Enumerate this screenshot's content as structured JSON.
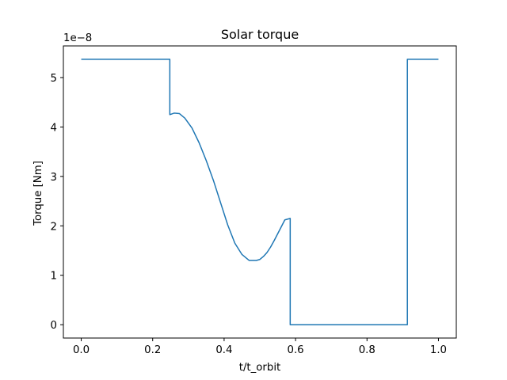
{
  "chart_data": {
    "type": "line",
    "title": "Solar torque",
    "xlabel": "t/t_orbit",
    "ylabel": "Torque [Nm]",
    "offset_text": "1e−8",
    "scale": 1e-08,
    "xlim": [
      -0.05,
      1.05
    ],
    "ylim": [
      -0.27,
      5.64
    ],
    "x_ticks": [
      0.0,
      0.2,
      0.4,
      0.6,
      0.8,
      1.0
    ],
    "x_tick_labels": [
      "0.0",
      "0.2",
      "0.4",
      "0.6",
      "0.8",
      "1.0"
    ],
    "y_ticks": [
      0,
      1,
      2,
      3,
      4,
      5
    ],
    "y_tick_labels": [
      "0",
      "1",
      "2",
      "3",
      "4",
      "5"
    ],
    "grid": false,
    "line_color": "#1f77b4",
    "series": [
      {
        "x": [
          0.0,
          0.248,
          0.248,
          0.26,
          0.275,
          0.29,
          0.31,
          0.33,
          0.35,
          0.37,
          0.39,
          0.41,
          0.43,
          0.45,
          0.47,
          0.49,
          0.5,
          0.51,
          0.52,
          0.53,
          0.54,
          0.55,
          0.56,
          0.57,
          0.585,
          0.585,
          0.913,
          0.913,
          1.0
        ],
        "y": [
          5.37,
          5.37,
          4.25,
          4.28,
          4.27,
          4.18,
          3.98,
          3.68,
          3.32,
          2.92,
          2.47,
          2.02,
          1.65,
          1.42,
          1.3,
          1.3,
          1.32,
          1.38,
          1.46,
          1.57,
          1.7,
          1.84,
          1.98,
          2.12,
          2.15,
          0.0,
          0.0,
          5.37,
          5.37
        ]
      }
    ]
  }
}
